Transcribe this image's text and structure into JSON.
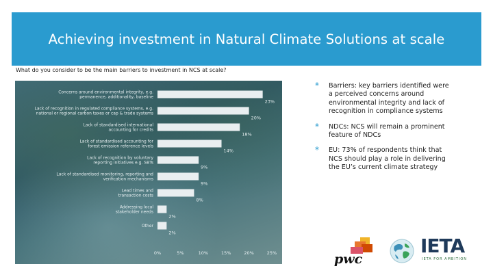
{
  "slide": {
    "title": "Achieving investment in Natural Climate Solutions at scale",
    "question": "What do you consider to be the main barriers to investment in NCS at scale?"
  },
  "bullets": [
    {
      "marker": "*",
      "text": "Barriers: key barriers identified were a perceived concerns around environmental integrity and lack of recognition in compliance systems"
    },
    {
      "marker": "*",
      "text": "NDCs: NCS will remain a prominent feature of NDCs"
    },
    {
      "marker": "*",
      "text": "EU: 73% of respondents think that NCS should play a role in delivering the EU’s current climate strategy"
    }
  ],
  "logos": {
    "pwc": "pwc",
    "ieta": "IETA",
    "ieta_tagline": "IETA FOR AMBITION"
  },
  "colors": {
    "title_bar": "#2a9bcf",
    "bar_fill": "#e9eef0",
    "ieta_navy": "#1f3a5a",
    "ieta_green": "#2b6a3a",
    "pwc_orange": "#e8772e"
  },
  "chart_data": {
    "type": "bar",
    "orientation": "horizontal",
    "categories": [
      [
        "Concerns around environmental integrity, e.g.",
        "permanence, additionality, baseline"
      ],
      [
        "Lack of recognition in regulated compliance systems, e.g.",
        "national or regional carbon taxes or cap & trade systems"
      ],
      [
        "Lack of standardised international",
        "accounting for credits"
      ],
      [
        "Lack of standardised accounting for",
        "forest emission reference levels"
      ],
      [
        "Lack of recognition by voluntary",
        "reporting initiatives e.g. SBTs"
      ],
      [
        "Lack of standardised monitoring, reporting and",
        "verification mechanisms"
      ],
      [
        "Lead times and",
        "transaction costs"
      ],
      [
        "Addressing local",
        "stakeholder needs"
      ],
      [
        "Other"
      ]
    ],
    "values": [
      23,
      20,
      18,
      14,
      9,
      9,
      8,
      2,
      2
    ],
    "value_labels": [
      "23%",
      "20%",
      "18%",
      "14%",
      "9%",
      "9%",
      "8%",
      "2%",
      "2%"
    ],
    "xlim": [
      0,
      25
    ],
    "xticks": [
      "0%",
      "5%",
      "10%",
      "15%",
      "20%",
      "25%"
    ],
    "title": "",
    "xlabel": "",
    "ylabel": ""
  }
}
